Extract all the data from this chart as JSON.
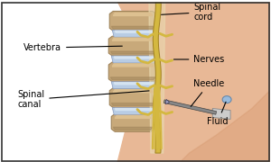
{
  "bg_color": "#ffffff",
  "skin_color": "#e8b896",
  "skin_shadow": "#d4956a",
  "vertebra_color": "#c8a97a",
  "vertebra_shadow": "#a0845a",
  "disc_color": "#b8cce4",
  "disc_highlight": "#dce9f5",
  "canal_color": "#c8b870",
  "cord_color": "#d4b840",
  "cord_outline": "#a08020",
  "nerve_color": "#d4b840",
  "nerve_outline": "#a08020",
  "needle_color": "#888888",
  "needle_tip": "#aaaacc",
  "fluid_color": "#99bbdd",
  "label_color": "#000000",
  "line_color": "#000000",
  "labels": {
    "vertebra": "Vertebra",
    "spinal_cord": "Spinal\ncord",
    "nerves": "Nerves",
    "needle": "Needle",
    "spinal_canal": "Spinal\ncanal",
    "fluid": "Fluid"
  },
  "figsize": [
    3.0,
    1.8
  ],
  "dpi": 100
}
